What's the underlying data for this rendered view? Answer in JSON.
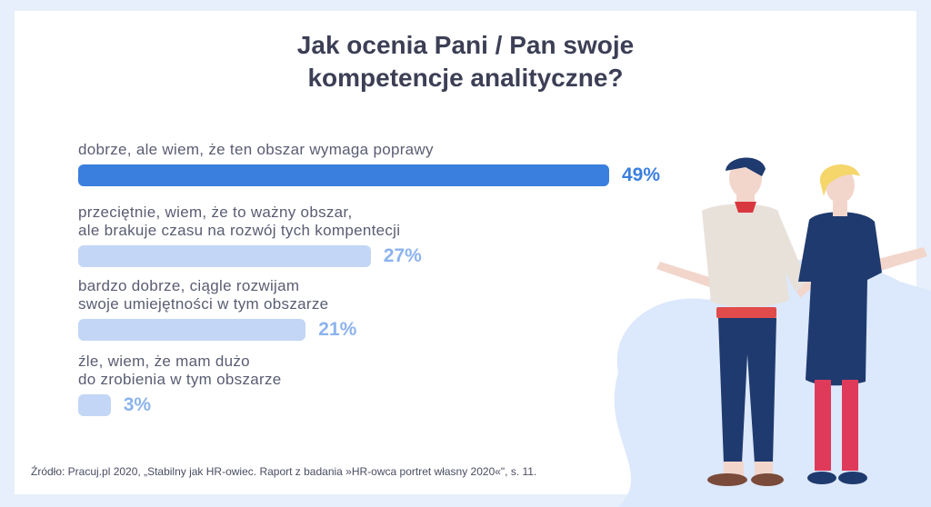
{
  "title_lines": [
    "Jak ocenia Pani / Pan swoje",
    "kompetencje analityczne?"
  ],
  "colors": {
    "highlight": "#3a7fde",
    "muted": "#c3d6f5",
    "muted_text": "#8cb3ee"
  },
  "chart_data": {
    "type": "bar",
    "orientation": "horizontal",
    "title": "Jak ocenia Pani / Pan swoje kompetencje analityczne?",
    "categories": [
      [
        "dobrze, ale wiem, że ten obszar wymaga poprawy"
      ],
      [
        "przeciętnie, wiem, że to ważny obszar,",
        "ale brakuje czasu na rozwój tych kompentecji"
      ],
      [
        "bardzo dobrze, ciągle rozwijam",
        "swoje umiejętności w tym obszarze"
      ],
      [
        "źle, wiem, że mam dużo",
        "do zrobienia w tym obszarze"
      ]
    ],
    "values": [
      49,
      27,
      21,
      3
    ],
    "value_labels": [
      "49%",
      "27%",
      "21%",
      "3%"
    ],
    "unit": "%",
    "highlighted_index": 0
  },
  "source": "Źródło: Pracuj.pl 2020, „Stabilny jak HR-owiec. Raport z badania »HR-owca portret własny 2020«\", s. 11."
}
